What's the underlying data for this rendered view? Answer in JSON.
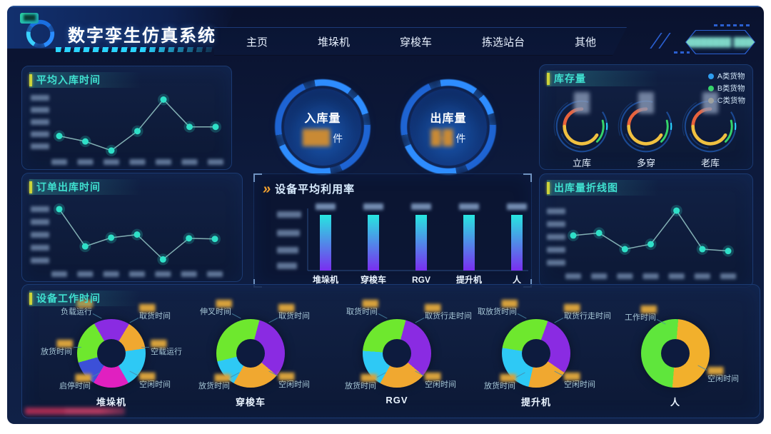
{
  "header": {
    "logo_badge": "████",
    "title": "数字孪生仿真系统",
    "nav": [
      "主页",
      "堆垛机",
      "穿梭车",
      "拣选站台",
      "其他"
    ],
    "user_info": "████████ ████"
  },
  "icons": {
    "chevrons": "»"
  },
  "kpis": [
    {
      "label": "入库量",
      "value": "███",
      "unit": "件"
    },
    {
      "label": "出库量",
      "value": "█-█",
      "unit": "件"
    }
  ],
  "panels": {
    "avg_inbound": {
      "title": "平均入库时间"
    },
    "order_outbound": {
      "title": "订单出库时间"
    },
    "utilization": {
      "title": "设备平均利用率"
    },
    "outbound_line": {
      "title": "出库量折线图"
    },
    "inventory": {
      "title": "库存量"
    },
    "work_time": {
      "title": "设备工作时间"
    }
  },
  "inventory": {
    "legend": [
      {
        "label": "A类货物",
        "color": "#2e9df0"
      },
      {
        "label": "B类货物",
        "color": "#35d46a"
      },
      {
        "label": "C类货物",
        "color": "#f0c23c"
      }
    ],
    "gauges": [
      {
        "label": "立库",
        "value": "██"
      },
      {
        "label": "多穿",
        "value": "██"
      },
      {
        "label": "老库",
        "value": "██"
      }
    ]
  },
  "chart_data": [
    {
      "id": "avg-inbound-time",
      "type": "line",
      "title": "平均入库时间",
      "color": "#2fe0c8",
      "x_tick_labels": [
        "██",
        "██",
        "██",
        "██",
        "██",
        "██",
        "██"
      ],
      "y_tick_labels_blurred": 5,
      "values": [
        30,
        21,
        6,
        38,
        90,
        45,
        45
      ],
      "ylim": [
        0,
        100
      ],
      "grid": false
    },
    {
      "id": "order-outbound-time",
      "type": "line",
      "title": "订单出库时间",
      "color": "#2fe0c8",
      "x_tick_labels": [
        "██",
        "██",
        "██",
        "██",
        "██",
        "██",
        "██"
      ],
      "y_tick_labels_blurred": 5,
      "values": [
        92,
        32,
        46,
        51,
        11,
        45,
        44
      ],
      "ylim": [
        0,
        100
      ],
      "grid": false
    },
    {
      "id": "equipment-utilization",
      "type": "bar",
      "title": "设备平均利用率",
      "categories": [
        "堆垛机",
        "穿梭车",
        "RGV",
        "提升机",
        "人"
      ],
      "values": [
        93,
        93,
        93,
        93,
        93
      ],
      "value_labels": [
        "███",
        "███",
        "███",
        "███",
        "███"
      ],
      "bar_gradient": [
        "#27e6e0",
        "#7a2ef0"
      ],
      "ylim": [
        0,
        100
      ],
      "y_tick_labels_blurred": 4
    },
    {
      "id": "outbound-volume",
      "type": "line",
      "title": "出库量折线图",
      "color": "#2fe0c8",
      "x_tick_labels": [
        "██",
        "██",
        "██",
        "██",
        "██",
        "██",
        "██"
      ],
      "y_tick_labels_blurred": 5,
      "values": [
        53,
        57,
        31,
        39,
        93,
        31,
        28
      ],
      "ylim": [
        0,
        100
      ],
      "grid": false
    },
    {
      "id": "inventory-gauges",
      "type": "ring-gauge",
      "title": "库存量",
      "labels": [
        "立库",
        "多穿",
        "老库"
      ],
      "legend": [
        "A类货物",
        "B类货物",
        "C类货物"
      ],
      "arc_colors": {
        "outer": "#1d4f9c",
        "main_start": "#e8623c",
        "main_end": "#f0c040",
        "side": "#35d46a",
        "tick": "#2ad4ff"
      }
    },
    {
      "id": "device-work-time",
      "type": "donut-set",
      "title": "设备工作时间",
      "donuts": [
        {
          "name": "堆垛机",
          "start": -30,
          "segments": [
            {
              "label": "负载运行",
              "color": "#8a2be2",
              "pct": 17,
              "value": "████"
            },
            {
              "label": "取货时间",
              "color": "#f0a830",
              "pct": 14,
              "value": "████"
            },
            {
              "label": "空载运行",
              "color": "#2ec9f5",
              "pct": 19,
              "value": "████"
            },
            {
              "label": "空闲时间",
              "color": "#e020c0",
              "pct": 17,
              "value": "████"
            },
            {
              "label": "启停时间",
              "color": "#3c50d8",
              "pct": 12,
              "value": "████"
            },
            {
              "label": "放货时间",
              "color": "#6ee82e",
              "pct": 21,
              "value": "████"
            }
          ]
        },
        {
          "name": "穿梭车",
          "start": 15,
          "segments": [
            {
              "label": "取货时间",
              "color": "#8a2be2",
              "pct": 32,
              "value": "████"
            },
            {
              "label": "空闲时间",
              "color": "#f0a830",
              "pct": 22,
              "value": "████"
            },
            {
              "label": "放货时间",
              "color": "#2ec9f5",
              "pct": 13,
              "value": "████"
            },
            {
              "label": "伸叉时间",
              "color": "#6ee82e",
              "pct": 33,
              "value": "████"
            }
          ]
        },
        {
          "name": "RGV",
          "start": 15,
          "segments": [
            {
              "label": "取货行走时间",
              "color": "#8a2be2",
              "pct": 32,
              "value": "████"
            },
            {
              "label": "空闲时间",
              "color": "#f0a830",
              "pct": 22,
              "value": "████"
            },
            {
              "label": "放货时间",
              "color": "#2ec9f5",
              "pct": 18,
              "value": "████"
            },
            {
              "label": "取货时间",
              "color": "#6ee82e",
              "pct": 28,
              "value": "████"
            }
          ]
        },
        {
          "name": "提升机",
          "start": 20,
          "segments": [
            {
              "label": "取货行走时间",
              "color": "#8a2be2",
              "pct": 29,
              "value": "████"
            },
            {
              "label": "空闲时间",
              "color": "#f0a830",
              "pct": 19,
              "value": "████"
            },
            {
              "label": "放货时间",
              "color": "#2ec9f5",
              "pct": 24,
              "value": "████"
            },
            {
              "label": "取放货时间",
              "color": "#6ee82e",
              "pct": 28,
              "value": "████"
            }
          ]
        },
        {
          "name": "人",
          "start": 5,
          "segments": [
            {
              "label": "空闲时间",
              "color": "#f2b02c",
              "pct": 50,
              "value": "████"
            },
            {
              "label": "工作时间",
              "color": "#5fe63c",
              "pct": 50,
              "value": "████"
            }
          ]
        }
      ]
    }
  ]
}
